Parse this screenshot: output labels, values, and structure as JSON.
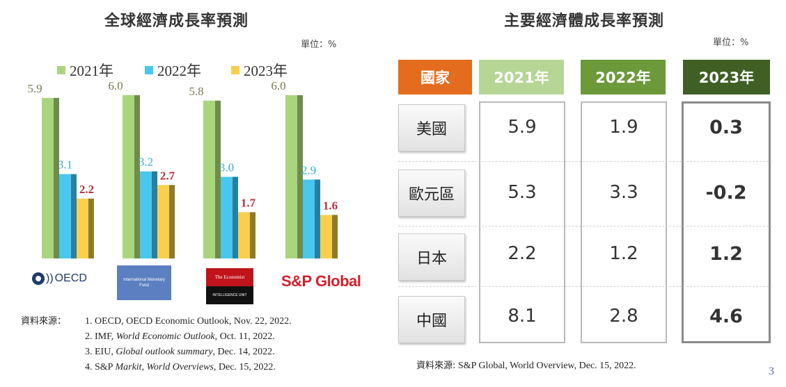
{
  "left": {
    "title": "全球經濟成長率預測",
    "unit": "單位：%"
  },
  "right": {
    "title": "主要經濟體成長率預測",
    "unit": "單位：%",
    "headers": [
      "國家",
      "2021年",
      "2022年",
      "2023年"
    ],
    "rows": [
      {
        "country": "美國",
        "v2021": "5.9",
        "v2022": "1.9",
        "v2023": "0.3"
      },
      {
        "country": "歐元區",
        "v2021": "5.3",
        "v2022": "3.3",
        "v2023": "-0.2"
      },
      {
        "country": "日本",
        "v2021": "2.2",
        "v2022": "1.2",
        "v2023": "1.2"
      },
      {
        "country": "中國",
        "v2021": "8.1",
        "v2022": "2.8",
        "v2023": "4.6"
      }
    ],
    "source": "S&P Global, World Overview, Dec. 15, 2022.",
    "source_label": "資料來源:"
  },
  "logos": {
    "oecd": "OECD",
    "imf": "International Monetary Fund",
    "eiu_top": "The Economist",
    "eiu_bottom": "INTELLIGENCE UNIT",
    "sp": "S&P Global"
  },
  "sources": {
    "label": "資料來源：",
    "items": [
      {
        "num": "1.",
        "pre": "OECD, OECD Economic Outlook, Nov. 22, 2022.",
        "ital": "",
        "post": ""
      },
      {
        "num": "2.",
        "pre": "IMF, ",
        "ital": "World Economic Outlook",
        "post": ", Oct. 11, 2022."
      },
      {
        "num": "3.",
        "pre": "EIU, ",
        "ital": "Global outlook summary",
        "post": ", Dec. 14, 2022."
      },
      {
        "num": "4.",
        "pre": "S&P ",
        "ital": "Markit, World Overviews",
        "post": ", Dec. 15, 2022."
      }
    ]
  },
  "page_number": "3",
  "colors": {
    "s2021": "#a9d57c",
    "s2022": "#48c8ee",
    "s2023": "#f8cf4e",
    "label2021": "#7a7a55",
    "label2022": "#3aa8d8",
    "label2023": "#b8303a"
  },
  "chart_data": {
    "type": "bar",
    "title": "全球經濟成長率預測",
    "ylabel": "單位：%",
    "xlabel": "",
    "ylim": [
      0,
      6.5
    ],
    "categories": [
      "OECD",
      "IMF",
      "EIU",
      "S&P Global"
    ],
    "series": [
      {
        "name": "2021年",
        "values": [
          5.9,
          6.0,
          5.8,
          6.0
        ]
      },
      {
        "name": "2022年",
        "values": [
          3.1,
          3.2,
          3.0,
          2.9
        ]
      },
      {
        "name": "2023年",
        "values": [
          2.2,
          2.7,
          1.7,
          1.6
        ]
      }
    ],
    "legend": "top"
  }
}
